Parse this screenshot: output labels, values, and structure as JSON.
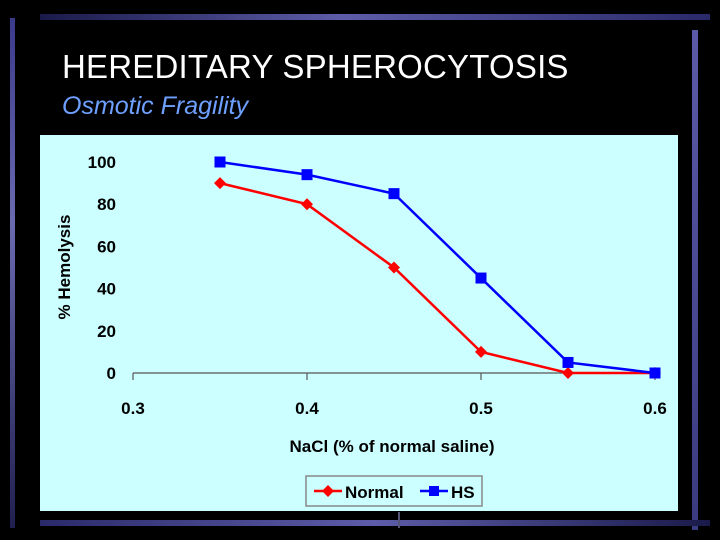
{
  "slide": {
    "title": "HEREDITARY SPHEROCYTOSIS",
    "subtitle": "Osmotic Fragility"
  },
  "colors": {
    "background": "#000000",
    "plot_background": "#ccffff",
    "normal": "#ff0000",
    "hs": "#0000ff",
    "subtitle": "#6ea0ff"
  },
  "chart_data": {
    "type": "line",
    "title": "",
    "xlabel": "NaCl (% of normal saline)",
    "ylabel": "% Hemolysis",
    "x_ticks": [
      "0.3",
      "0.4",
      "0.5",
      "0.6"
    ],
    "y_ticks": [
      "0",
      "20",
      "40",
      "60",
      "80",
      "100"
    ],
    "xlim": [
      0.3,
      0.6
    ],
    "ylim": [
      0,
      100
    ],
    "grid": false,
    "legend_position": "bottom-center",
    "series": [
      {
        "name": "Normal",
        "color": "#ff0000",
        "marker": "diamond",
        "x": [
          0.35,
          0.4,
          0.45,
          0.5,
          0.55,
          0.6
        ],
        "y": [
          90,
          80,
          50,
          10,
          0,
          0
        ]
      },
      {
        "name": "HS",
        "color": "#0000ff",
        "marker": "square",
        "x": [
          0.35,
          0.4,
          0.45,
          0.5,
          0.55,
          0.6
        ],
        "y": [
          100,
          94,
          85,
          45,
          5,
          0
        ]
      }
    ]
  }
}
